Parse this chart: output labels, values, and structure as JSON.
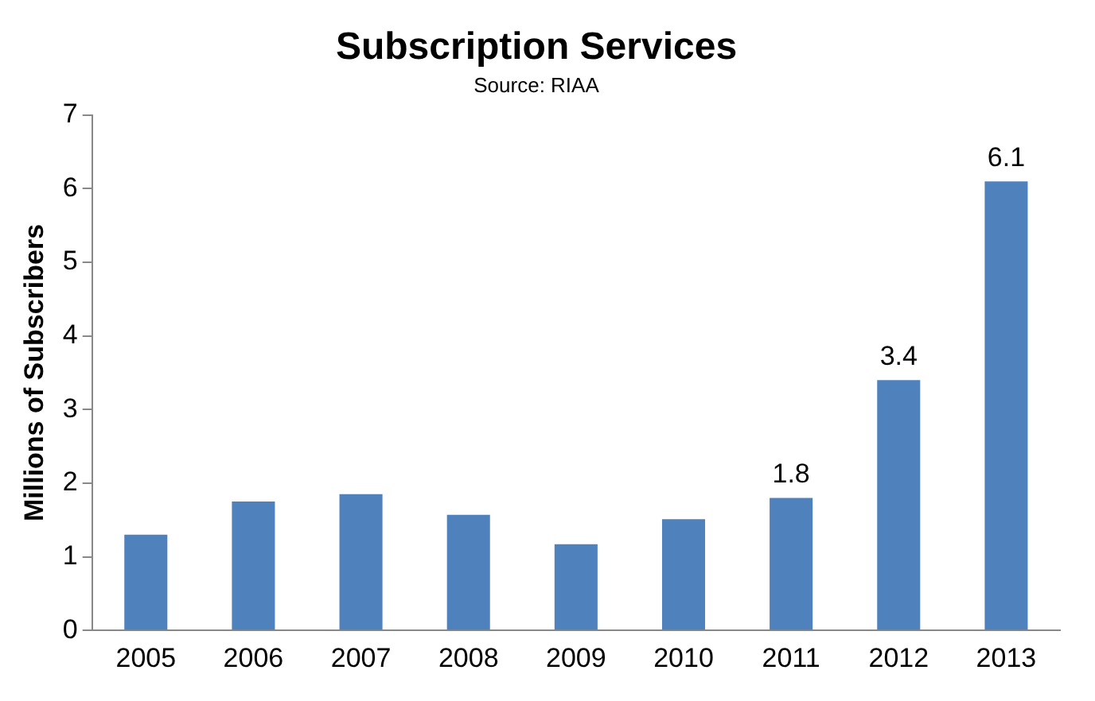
{
  "chart_data": {
    "type": "bar",
    "title": "Subscription Services",
    "subtitle": "Source: RIAA",
    "ylabel": "Millions of Subscribers",
    "categories": [
      "2005",
      "2006",
      "2007",
      "2008",
      "2009",
      "2010",
      "2011",
      "2012",
      "2013"
    ],
    "values": [
      1.3,
      1.75,
      1.85,
      1.57,
      1.17,
      1.51,
      1.8,
      3.4,
      6.1
    ],
    "value_labels": [
      null,
      null,
      null,
      null,
      null,
      null,
      "1.8",
      "3.4",
      "6.1"
    ],
    "color": "#4f81bd",
    "ylim": [
      0,
      7
    ],
    "yticks": [
      0,
      1,
      2,
      3,
      4,
      5,
      6,
      7
    ],
    "grid": false,
    "legend": false
  }
}
